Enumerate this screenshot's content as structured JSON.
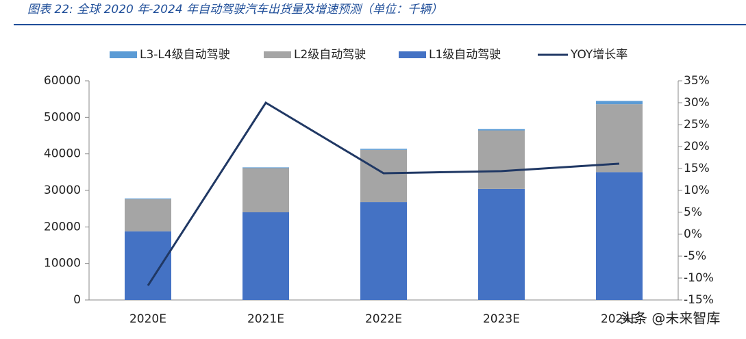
{
  "chart_data": {
    "type": "bar",
    "title": "图表 22: 全球 2020 年-2024 年自动驾驶汽车出货量及增速预测（单位：千辆）",
    "categories": [
      "2020E",
      "2021E",
      "2022E",
      "2023E",
      "2024E"
    ],
    "stacked": true,
    "series": [
      {
        "name": "L3-L4级自动驾驶",
        "color": "#5b9bd5",
        "values": [
          200,
          200,
          300,
          400,
          900
        ]
      },
      {
        "name": "L2级自动驾驶",
        "color": "#a5a5a5",
        "values": [
          8800,
          12100,
          14300,
          16000,
          18600
        ]
      },
      {
        "name": "L1级自动驾驶",
        "color": "#4472c4",
        "values": [
          18800,
          24000,
          26800,
          30400,
          35000
        ]
      },
      {
        "name": "YOY增长率",
        "color": "#203864",
        "type": "line",
        "axis": "y2",
        "values": [
          -11.7,
          30,
          13.9,
          14.4,
          16.1
        ]
      }
    ],
    "ylim": [
      0,
      60000
    ],
    "yticks": [
      0,
      10000,
      20000,
      30000,
      40000,
      50000,
      60000
    ],
    "y2lim": [
      -15,
      35
    ],
    "y2ticks": [
      {
        "value": -15,
        "label": "-15%"
      },
      {
        "value": -10,
        "label": "-10%"
      },
      {
        "value": -5,
        "label": "-5%"
      },
      {
        "value": 0,
        "label": "0%"
      },
      {
        "value": 5,
        "label": "5%"
      },
      {
        "value": 10,
        "label": "10%"
      },
      {
        "value": 15,
        "label": "15%"
      },
      {
        "value": 20,
        "label": "20%"
      },
      {
        "value": 25,
        "label": "25%"
      },
      {
        "value": 30,
        "label": "30%"
      },
      {
        "value": 35,
        "label": "35%"
      }
    ],
    "watermark": "头条 @未来智库"
  }
}
